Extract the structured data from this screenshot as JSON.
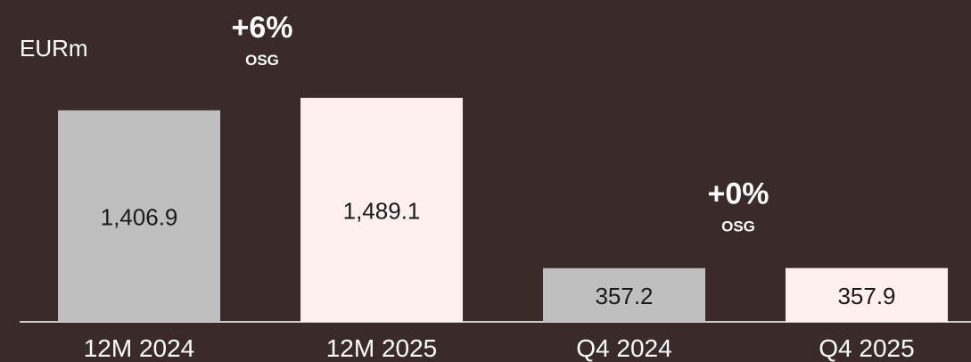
{
  "chart_data": {
    "type": "bar",
    "unit_label": "EURm",
    "categories": [
      "12M 2024",
      "12M 2025",
      "Q4 2024",
      "Q4 2025"
    ],
    "values": [
      1406.9,
      1489.1,
      357.2,
      357.9
    ],
    "value_labels": [
      "1,406.9",
      "1,489.1",
      "357.2",
      "357.9"
    ],
    "ylim": [
      0,
      1500
    ],
    "grid": false,
    "annotations": [
      {
        "between": [
          "12M 2024",
          "12M 2025"
        ],
        "value": "+6%",
        "label": "OSG"
      },
      {
        "between": [
          "Q4 2024",
          "Q4 2025"
        ],
        "value": "+0%",
        "label": "OSG"
      }
    ]
  },
  "colors": {
    "background": "#3b2a2a",
    "bar_2024": "#bfbfbf",
    "bar_2025": "#fdf0ee",
    "text_light": "#ffffff",
    "text_dark": "#1a1a1a"
  }
}
